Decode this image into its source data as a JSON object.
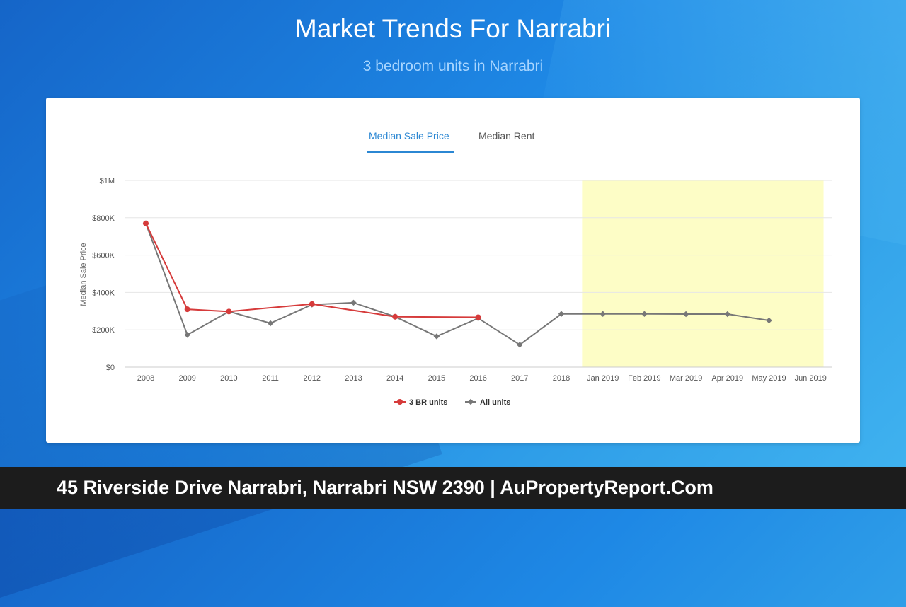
{
  "page": {
    "title": "Market Trends For Narrabri",
    "subtitle": "3 bedroom units in Narrabri"
  },
  "tabs": [
    {
      "label": "Median Sale Price",
      "active": true
    },
    {
      "label": "Median Rent",
      "active": false
    }
  ],
  "footer": {
    "text": "45 Riverside Drive Narrabri, Narrabri NSW 2390 | AuPropertyReport.Com"
  },
  "colors": {
    "accent": "#2b87d3",
    "series_3br": "#d63b3b",
    "series_all": "#777777",
    "forecast_band": "#fdfdc6"
  },
  "chart_data": {
    "type": "line",
    "ylabel": "Median Sale Price",
    "xlabel": "",
    "ylim": [
      0,
      1000000
    ],
    "y_ticks": [
      0,
      200000,
      400000,
      600000,
      800000,
      1000000
    ],
    "y_tick_labels": [
      "$0",
      "$200K",
      "$400K",
      "$600K",
      "$800K",
      "$1M"
    ],
    "categories": [
      "2008",
      "2009",
      "2010",
      "2011",
      "2012",
      "2013",
      "2014",
      "2015",
      "2016",
      "2017",
      "2018",
      "Jan 2019",
      "Feb 2019",
      "Mar 2019",
      "Apr 2019",
      "May 2019",
      "Jun 2019"
    ],
    "highlight_range": [
      "Jan 2019",
      "Jun 2019"
    ],
    "grid": true,
    "legend_position": "bottom",
    "series": [
      {
        "name": "3 BR units",
        "color": "#d63b3b",
        "values": [
          770000,
          310000,
          298000,
          null,
          338000,
          null,
          270000,
          null,
          267000,
          null,
          null,
          null,
          null,
          null,
          null,
          null,
          null
        ]
      },
      {
        "name": "All units",
        "color": "#777777",
        "values": [
          770000,
          173000,
          298000,
          235000,
          335000,
          345000,
          270000,
          165000,
          262000,
          120000,
          285000,
          285000,
          285000,
          284000,
          284000,
          250000,
          null
        ]
      }
    ]
  }
}
